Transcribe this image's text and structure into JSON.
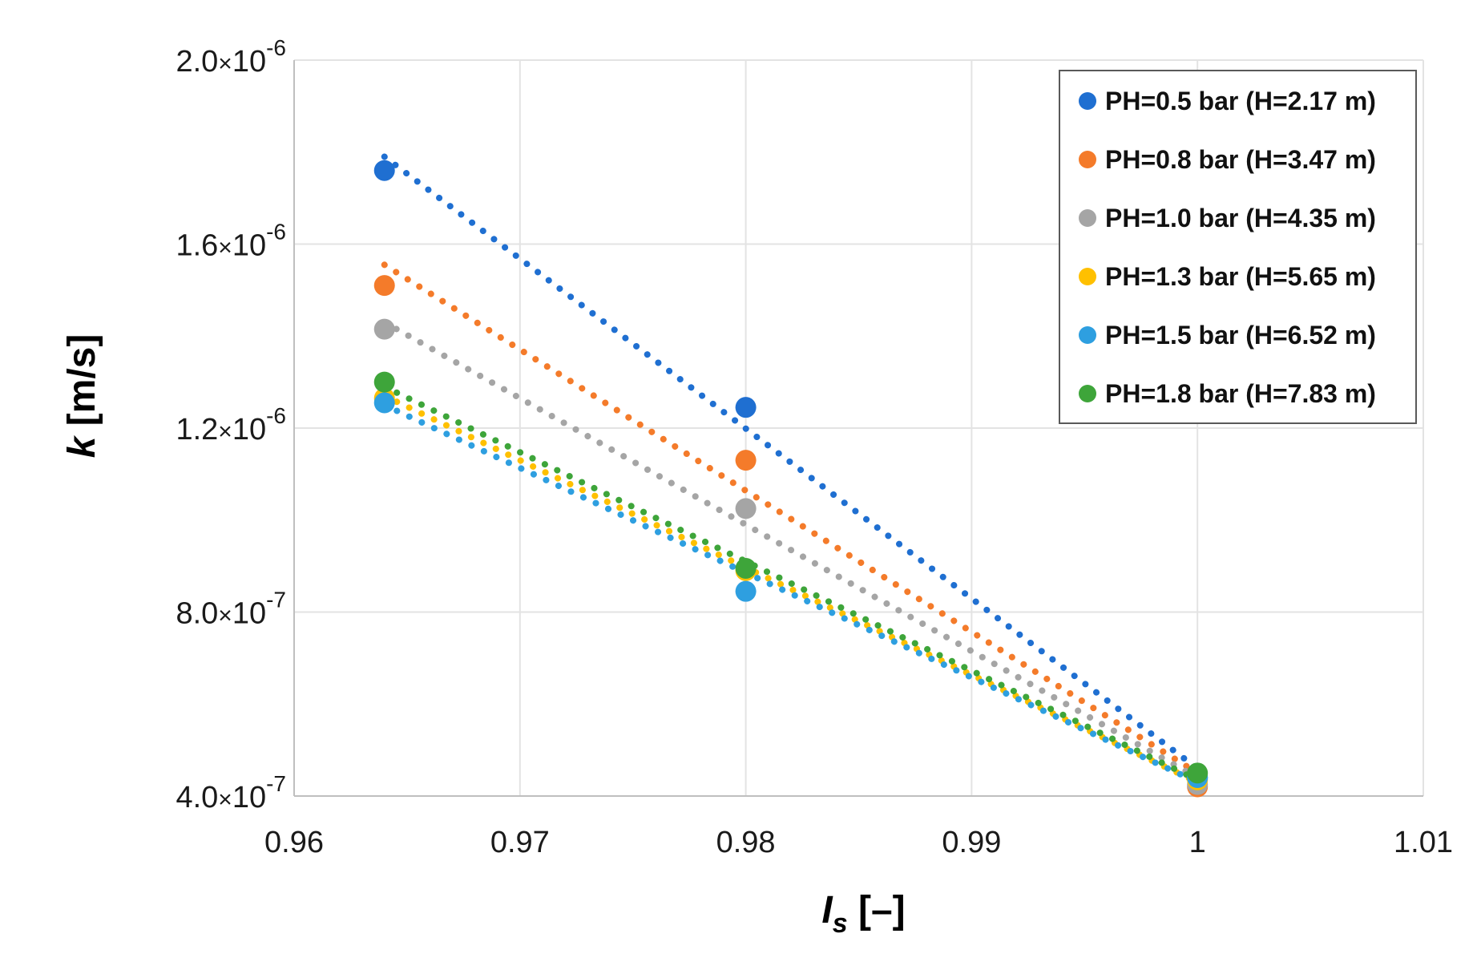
{
  "chart_data": {
    "type": "scatter",
    "title": "",
    "xlabel": "I",
    "xlabel_subscript": "s",
    "xlabel_unit": "[–]",
    "ylabel": "k",
    "ylabel_unit": "[m/s]",
    "xlim": [
      0.96,
      1.01
    ],
    "ylim": [
      4e-07,
      2e-06
    ],
    "x_ticks": [
      0.96,
      0.97,
      0.98,
      0.99,
      1.0,
      1.01
    ],
    "x_tick_labels": [
      "0.96",
      "0.97",
      "0.98",
      "0.99",
      "1",
      "1.01"
    ],
    "y_ticks": [
      4e-07,
      8e-07,
      1.2e-06,
      1.6e-06,
      2e-06
    ],
    "y_tick_labels": [
      {
        "mantissa": "4.0",
        "exponent": "-7"
      },
      {
        "mantissa": "8.0",
        "exponent": "-7"
      },
      {
        "mantissa": "1.2",
        "exponent": "-6"
      },
      {
        "mantissa": "1.6",
        "exponent": "-6"
      },
      {
        "mantissa": "2.0",
        "exponent": "-6"
      }
    ],
    "grid": true,
    "legend_position": "top-right",
    "trendline_style": "dotted",
    "series": [
      {
        "name": "PH=0.5 bar (H=2.17 m)",
        "color": "#1f6fd1",
        "points": [
          [
            0.964,
            1.76e-06
          ],
          [
            0.98,
            1.245e-06
          ],
          [
            1.0,
            4.4e-07
          ]
        ],
        "trendline": [
          [
            0.964,
            1.79e-06
          ],
          [
            1.0,
            4.6e-07
          ]
        ]
      },
      {
        "name": "PH=0.8 bar (H=3.47 m)",
        "color": "#f47b2a",
        "points": [
          [
            0.964,
            1.51e-06
          ],
          [
            0.98,
            1.13e-06
          ],
          [
            1.0,
            4.2e-07
          ]
        ],
        "trendline": [
          [
            0.964,
            1.555e-06
          ],
          [
            1.0,
            4.5e-07
          ]
        ]
      },
      {
        "name": "PH=1.0 bar (H=4.35 m)",
        "color": "#a5a5a5",
        "points": [
          [
            0.964,
            1.415e-06
          ],
          [
            0.98,
            1.025e-06
          ],
          [
            1.0,
            4.25e-07
          ]
        ],
        "trendline": [
          [
            0.964,
            1.43e-06
          ],
          [
            1.0,
            4.4e-07
          ]
        ]
      },
      {
        "name": "PH=1.3 bar (H=5.65 m)",
        "color": "#ffc000",
        "points": [
          [
            0.964,
            1.265e-06
          ],
          [
            0.98,
            8.9e-07
          ],
          [
            1.0,
            4.35e-07
          ]
        ],
        "trendline": [
          [
            0.964,
            1.27e-06
          ],
          [
            1.0,
            4.3e-07
          ]
        ]
      },
      {
        "name": "PH=1.5 bar (H=6.52 m)",
        "color": "#2e9fe0",
        "points": [
          [
            0.964,
            1.255e-06
          ],
          [
            0.98,
            8.45e-07
          ],
          [
            1.0,
            4.4e-07
          ]
        ],
        "trendline": [
          [
            0.964,
            1.25e-06
          ],
          [
            1.0,
            4.3e-07
          ]
        ]
      },
      {
        "name": "PH=1.8 bar (H=7.83 m)",
        "color": "#3ea53a",
        "points": [
          [
            0.964,
            1.3e-06
          ],
          [
            0.98,
            8.95e-07
          ],
          [
            1.0,
            4.5e-07
          ]
        ],
        "trendline": [
          [
            0.964,
            1.29e-06
          ],
          [
            1.0,
            4.35e-07
          ]
        ]
      }
    ]
  }
}
